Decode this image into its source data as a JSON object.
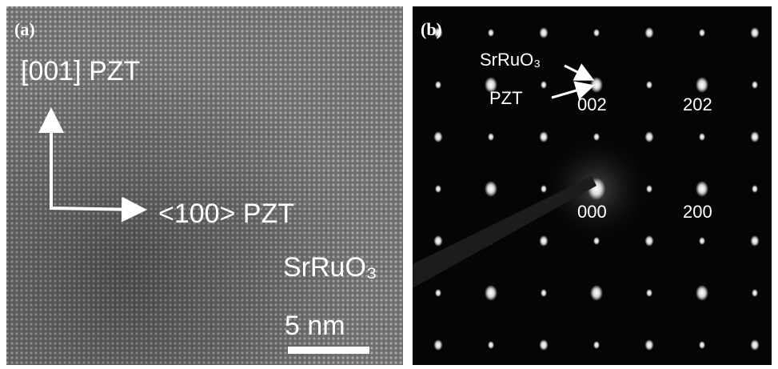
{
  "panel_a": {
    "label": "(a)",
    "direction_vertical": "[001] PZT",
    "direction_horizontal": "<100> PZT",
    "layer": "SrRuO₃",
    "scale_bar": "5 nm"
  },
  "panel_b": {
    "label": "(b)",
    "arrow_labels": [
      "SrRuO₃",
      "PZT"
    ],
    "spot_indices": [
      "002",
      "202",
      "000",
      "200"
    ]
  }
}
